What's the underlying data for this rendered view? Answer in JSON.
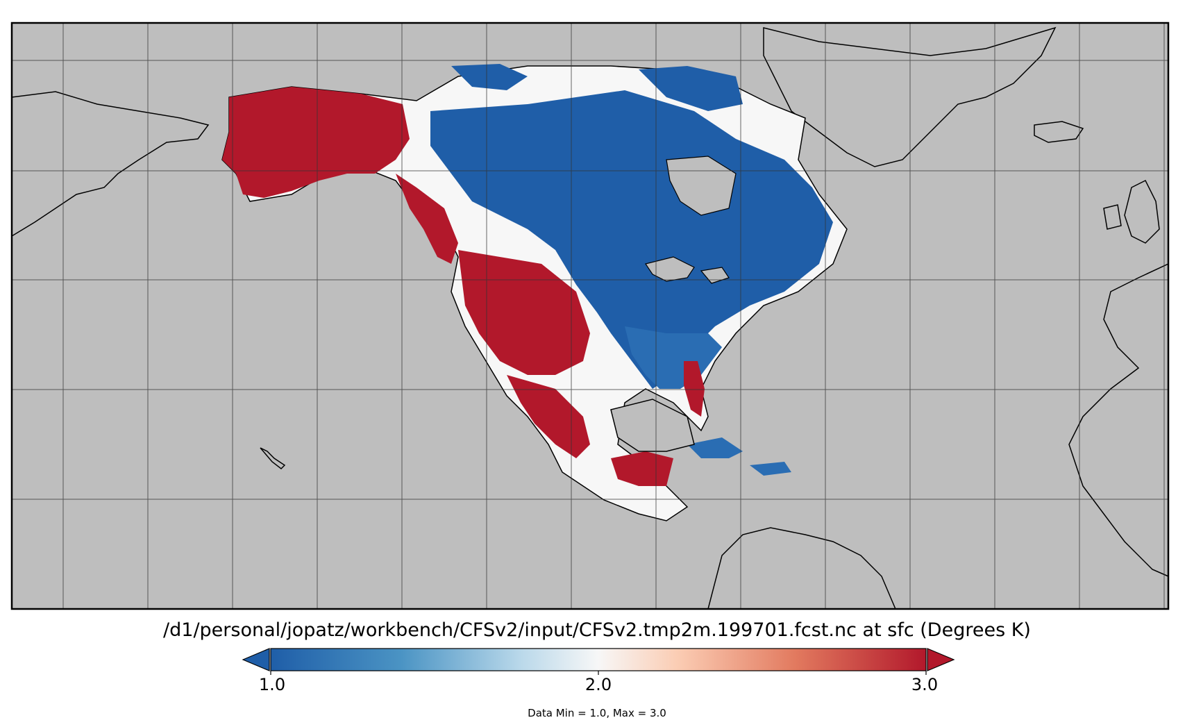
{
  "title": "/d1/personal/jopatz/workbench/CFSv2/input/CFSv2.tmp2m.199701.fcst.nc at sfc (Degrees K)",
  "colorbar": {
    "min_label": "1.0",
    "mid_label": "2.0",
    "max_label": "3.0",
    "min": 1.0,
    "max": 3.0,
    "colors": [
      "#2166ac",
      "#4393c3",
      "#92c5de",
      "#d1e5f0",
      "#f7f7f7",
      "#fddbc7",
      "#f4a582",
      "#d6604d",
      "#b2182b"
    ],
    "extend": "both"
  },
  "data_summary": "Data Min = 1.0, Max = 3.0",
  "map": {
    "ocean_color": "#bebebe",
    "land_outline_color": "#000000",
    "grid": true,
    "regions": [
      {
        "name": "alaska",
        "value": 3.0
      },
      {
        "name": "western-canada-coast",
        "value": 3.0
      },
      {
        "name": "western-us",
        "value": 3.0
      },
      {
        "name": "mexico",
        "value": 3.0
      },
      {
        "name": "central-america",
        "value": 3.0
      },
      {
        "name": "florida",
        "value": 3.0
      },
      {
        "name": "central-canada",
        "value": 1.0
      },
      {
        "name": "eastern-canada",
        "value": 1.0
      },
      {
        "name": "eastern-us",
        "value": 1.0
      },
      {
        "name": "arctic-islands",
        "value": 1.0
      },
      {
        "name": "caribbean",
        "value": 1.0
      },
      {
        "name": "transition-band",
        "value": 2.0
      }
    ]
  }
}
